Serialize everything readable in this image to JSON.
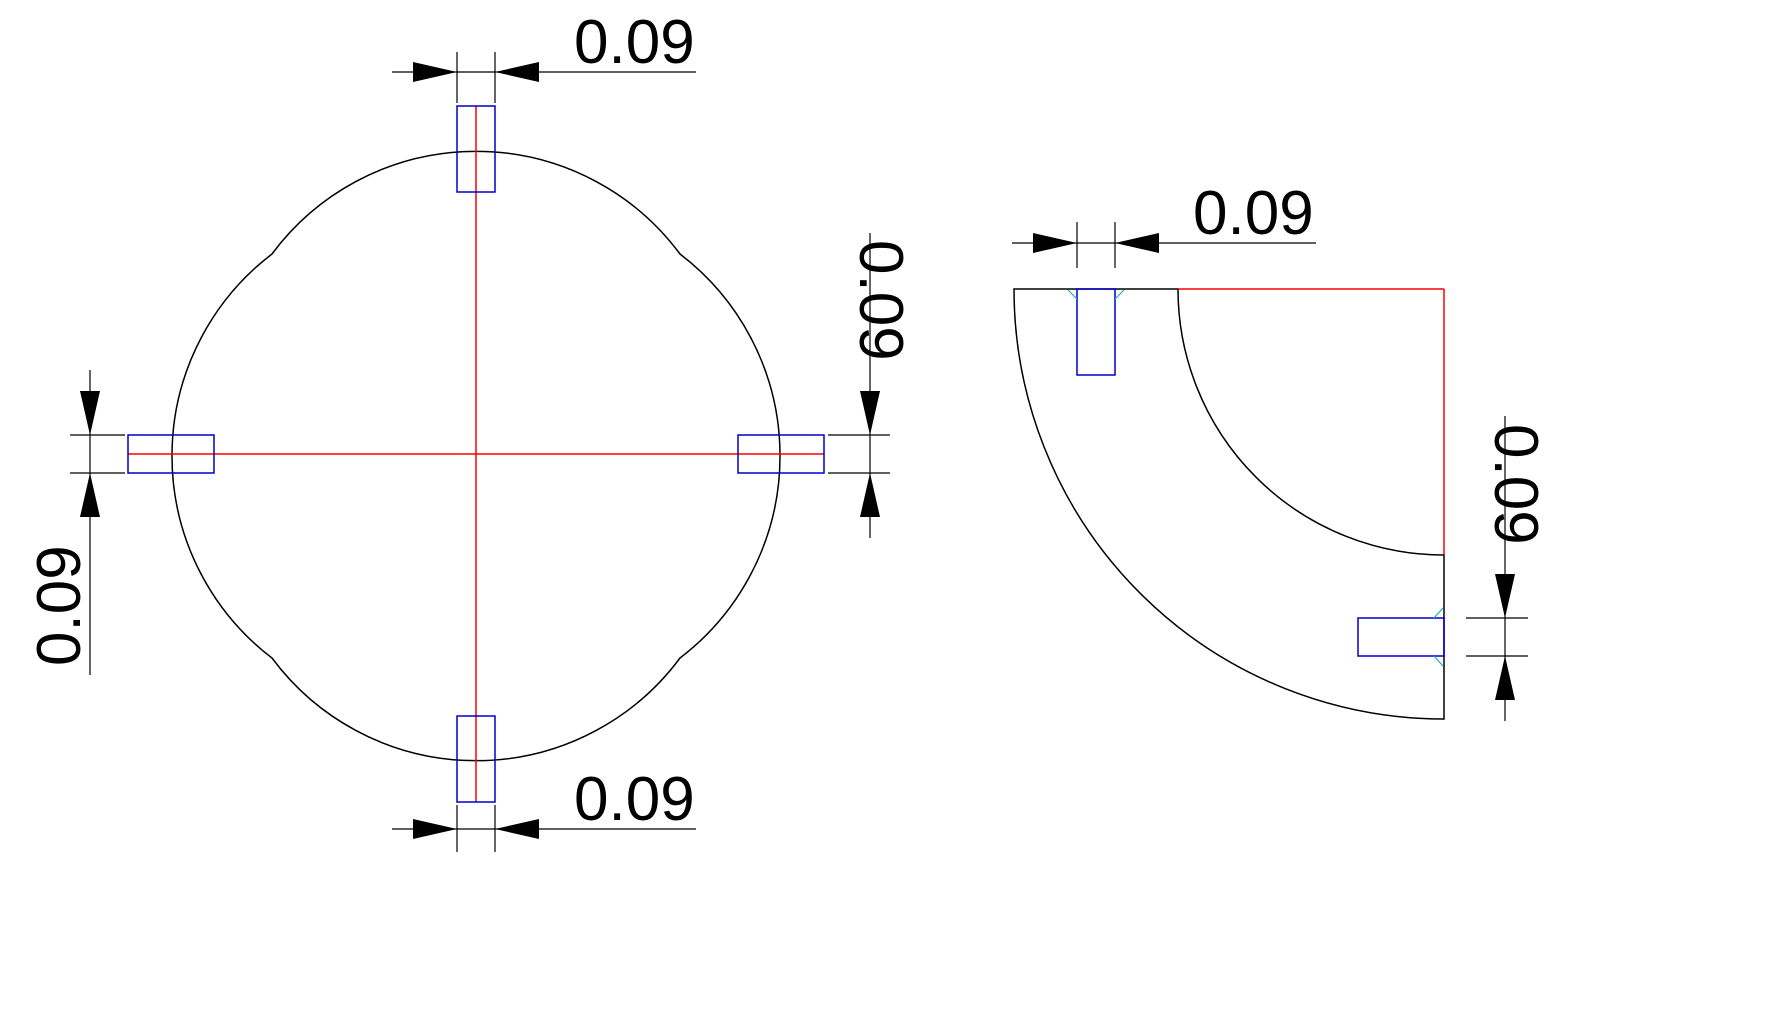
{
  "dimensions": {
    "left_top": "0.09",
    "left_bottom": "0.09",
    "left_left": "0.09",
    "left_right": "0.09",
    "right_top": "0.09",
    "right_right": "0.09"
  },
  "colors": {
    "outline": "#000000",
    "center_lines": "#ff0000",
    "slots": "#0000cc",
    "chamfers": "#22aacc"
  }
}
